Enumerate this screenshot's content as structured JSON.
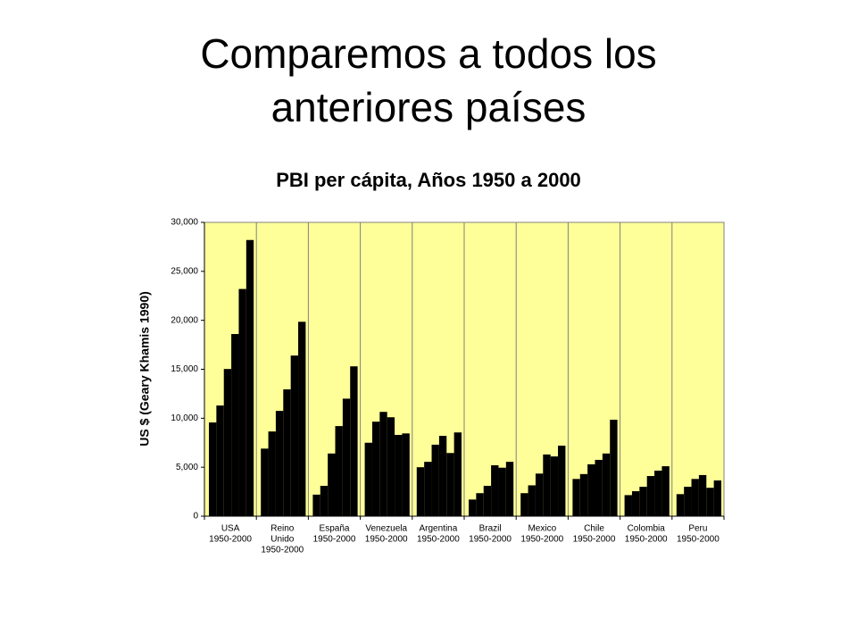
{
  "slide_title": "Comparemos a todos los anteriores países",
  "chart_data": {
    "type": "bar",
    "title": "PBI per cápita, Años 1950 a 2000",
    "y_label": "US $ (Geary Khamis 1990)",
    "categories": [
      [
        "USA",
        "1950-2000"
      ],
      [
        "Reino",
        "Unido",
        "1950-2000"
      ],
      [
        "España",
        "1950-2000"
      ],
      [
        "Venezuela",
        "1950-2000"
      ],
      [
        "Argentina",
        "1950-2000"
      ],
      [
        "Brazil",
        "1950-2000"
      ],
      [
        "Mexico",
        "1950-2000"
      ],
      [
        "Chile",
        "1950-2000"
      ],
      [
        "Colombia",
        "1950-2000"
      ],
      [
        "Peru",
        "1950-2000"
      ]
    ],
    "series": [
      {
        "color": "#000000",
        "values": [
          9570,
          6900,
          2200,
          7500,
          5000,
          1700,
          2350,
          3800,
          2150,
          2250
        ]
      },
      {
        "color": "#000000",
        "values": [
          11300,
          8650,
          3100,
          9650,
          5550,
          2350,
          3150,
          4300,
          2550,
          3000
        ]
      },
      {
        "color": "#000000",
        "values": [
          15030,
          10750,
          6400,
          10650,
          7300,
          3100,
          4350,
          5300,
          3000,
          3800
        ]
      },
      {
        "color": "#000000",
        "values": [
          18600,
          12950,
          9200,
          10100,
          8200,
          5200,
          6300,
          5750,
          4100,
          4200
        ]
      },
      {
        "color": "#000000",
        "values": [
          23200,
          16400,
          12000,
          8300,
          6450,
          4950,
          6100,
          6400,
          4650,
          2900
        ]
      },
      {
        "color": "#000000",
        "values": [
          28200,
          19850,
          15300,
          8450,
          8550,
          5550,
          7200,
          9850,
          5100,
          3650
        ]
      }
    ],
    "ylim": [
      0,
      30000
    ],
    "yticks": [
      0,
      {
        "value": 5000,
        "label": "5,000"
      },
      {
        "value": 10000,
        "label": "10,000"
      },
      {
        "value": 15000,
        "label": "15,000"
      },
      {
        "value": 20000,
        "label": "20,000"
      },
      {
        "value": 25000,
        "label": "25,000"
      },
      {
        "value": 30000,
        "label": "30,000"
      }
    ],
    "plot_background": "#ffff99"
  }
}
